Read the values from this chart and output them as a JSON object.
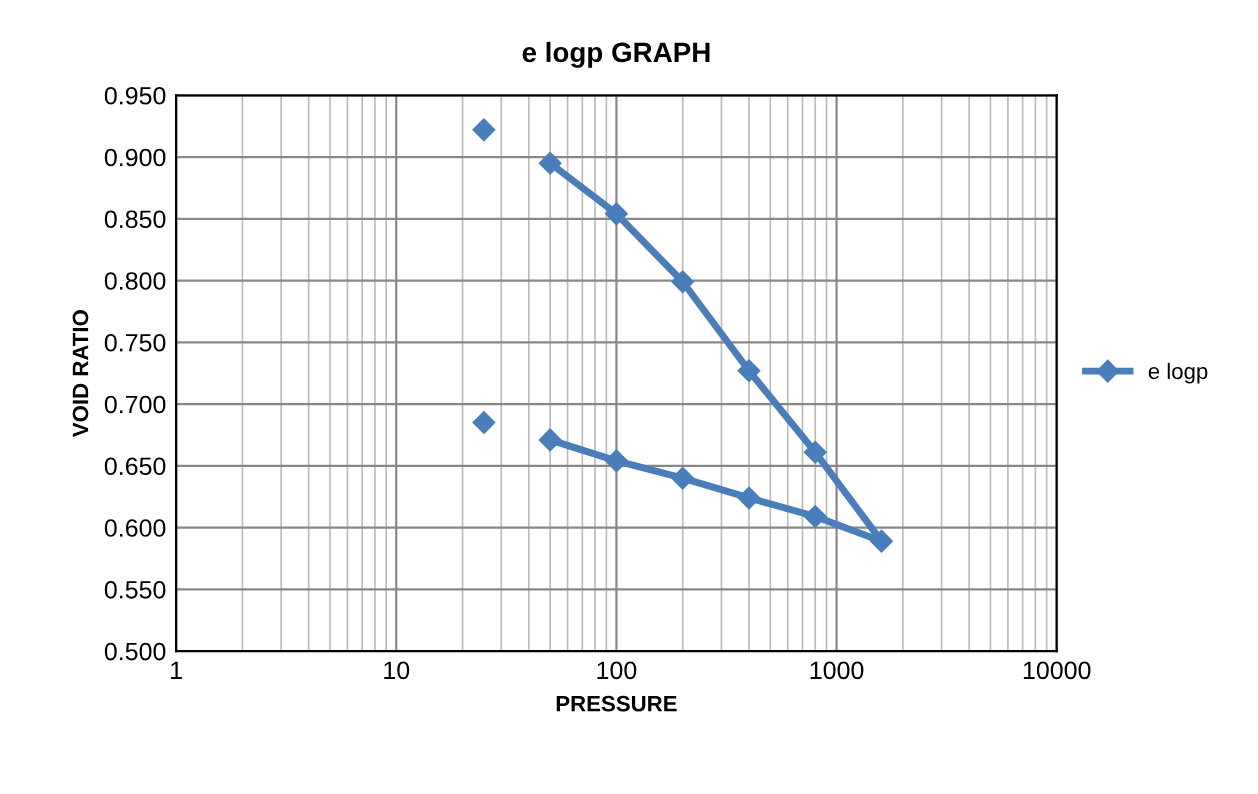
{
  "chart_data": {
    "type": "line",
    "title": "e logp GRAPH",
    "xlabel": "PRESSURE",
    "ylabel": "VOID RATIO",
    "log": "x",
    "xlim": [
      1,
      10000
    ],
    "xticks": [
      1,
      10,
      100,
      1000,
      10000
    ],
    "ylim": [
      0.5,
      0.95
    ],
    "yticks": [
      {
        "value": 0.5,
        "label": "0.500"
      },
      {
        "value": 0.55,
        "label": "0.550"
      },
      {
        "value": 0.6,
        "label": "0.600"
      },
      {
        "value": 0.65,
        "label": "0.650"
      },
      {
        "value": 0.7,
        "label": "0.700"
      },
      {
        "value": 0.75,
        "label": "0.750"
      },
      {
        "value": 0.8,
        "label": "0.800"
      },
      {
        "value": 0.85,
        "label": "0.850"
      },
      {
        "value": 0.9,
        "label": "0.900"
      },
      {
        "value": 0.95,
        "label": "0.950"
      }
    ],
    "grid": true,
    "legend": "right",
    "marker": "diamond",
    "line_style": "solid",
    "series": [
      {
        "name": "e logp",
        "color": "#4a7ebb",
        "x": [
          50,
          100,
          200,
          400,
          800,
          1600,
          800,
          400,
          200,
          100,
          50
        ],
        "values": [
          0.895,
          0.854,
          0.799,
          0.727,
          0.661,
          0.589,
          0.609,
          0.624,
          0.64,
          0.654,
          0.671
        ]
      },
      {
        "type": "scatter",
        "color": "#4a7ebb",
        "x": [
          25,
          25
        ],
        "values": [
          0.922,
          0.685
        ]
      }
    ]
  }
}
